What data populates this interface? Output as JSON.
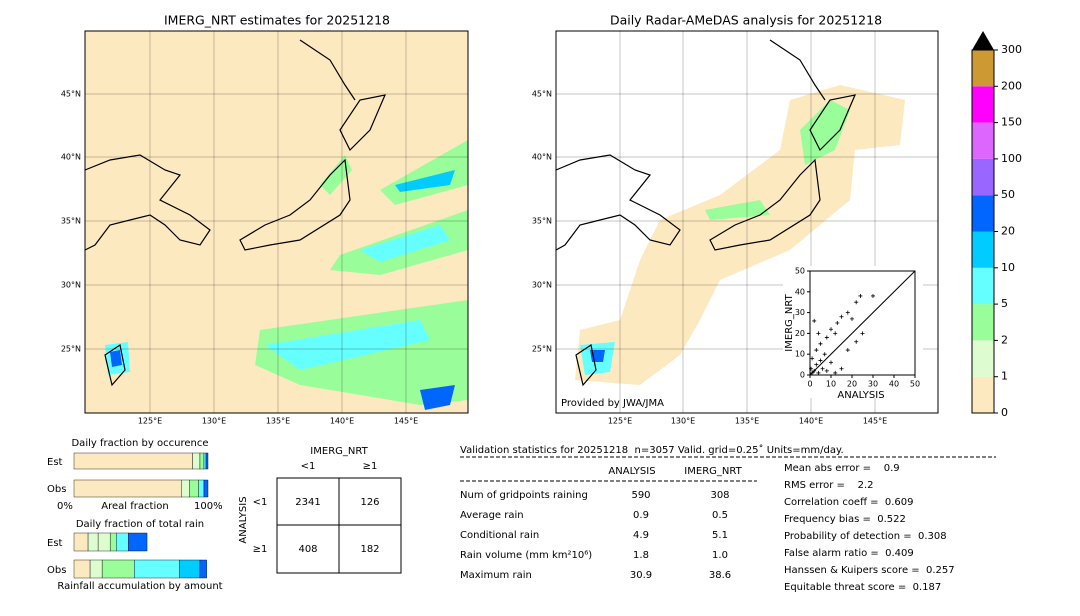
{
  "map1": {
    "title": "IMERG_NRT estimates for 20251218",
    "lat_labels": [
      "45°N",
      "40°N",
      "35°N",
      "30°N",
      "25°N"
    ],
    "lon_labels": [
      "125°E",
      "130°E",
      "135°E",
      "140°E",
      "145°E"
    ]
  },
  "map2": {
    "title": "Daily Radar-AMeDAS analysis for 20251218",
    "lat_labels": [
      "45°N",
      "40°N",
      "35°N",
      "30°N",
      "25°N"
    ],
    "lon_labels": [
      "125°E",
      "130°E",
      "135°E",
      "140°E",
      "145°E"
    ],
    "credit": "Provided by JWA/JMA"
  },
  "colorbar": {
    "ticks": [
      0,
      1,
      2,
      5,
      10,
      20,
      50,
      100,
      150,
      200,
      300
    ],
    "colors": [
      "#fde9c0",
      "#ddfdd0",
      "#99fd99",
      "#66ffff",
      "#00ccff",
      "#0066ff",
      "#9966ff",
      "#dd66ff",
      "#ff00ff",
      "#cc9933"
    ]
  },
  "scatter": {
    "type": "scatter",
    "xlabel": "ANALYSIS",
    "ylabel": "IMERG_NRT",
    "xlim": [
      0,
      50
    ],
    "ylim": [
      0,
      50
    ],
    "xticks": [
      0,
      10,
      20,
      30,
      40,
      50
    ],
    "yticks": [
      0,
      10,
      20,
      30,
      40,
      50
    ],
    "x": [
      24,
      22,
      30,
      18,
      15,
      13,
      10,
      8,
      5,
      3,
      20,
      12,
      7,
      2,
      4,
      25,
      18,
      22,
      1,
      3,
      6,
      10,
      15,
      2,
      1,
      4,
      8,
      12,
      0.5,
      5
    ],
    "y": [
      38,
      35,
      38,
      30,
      28,
      25,
      22,
      18,
      15,
      12,
      27,
      20,
      10,
      26,
      20,
      20,
      12,
      16,
      8,
      5,
      3,
      6,
      3,
      2,
      1,
      1,
      2,
      1,
      3,
      7
    ]
  },
  "occurrence": {
    "title": "Daily fraction by occurence",
    "rows": [
      "Est",
      "Obs"
    ],
    "axis_left": "0%",
    "axis_mid": "Areal fraction",
    "axis_right": "100%",
    "colors": [
      "#fde9c0",
      "#ddfdd0",
      "#99fd99",
      "#66ffff",
      "#0066ff"
    ],
    "est": [
      88.5,
      5.5,
      3,
      1.5,
      1.5
    ],
    "obs": [
      80,
      6,
      7,
      4,
      3
    ]
  },
  "total": {
    "title": "Daily fraction of total rain",
    "rows": [
      "Est",
      "Obs"
    ],
    "footer": "Rainfall accumulation by amount",
    "est_colors": [
      "#fde9c0",
      "#ddfdd0",
      "#ddfdd0",
      "#99fd99",
      "#66ffff",
      "#0066ff"
    ],
    "est": [
      10.5,
      7.5,
      9,
      4.5,
      9,
      14
    ],
    "obs_colors": [
      "#fde9c0",
      "#ddfdd0",
      "#99fd99",
      "#66ffff",
      "#00ccff",
      "#0066ff"
    ],
    "obs": [
      12,
      9,
      24,
      33.5,
      15.5,
      5
    ]
  },
  "contingency": {
    "col_title": "IMERG_NRT",
    "row_title": "ANALYSIS",
    "cols": [
      "<1",
      "≥1"
    ],
    "rows": [
      "<1",
      "≥1"
    ],
    "cells": [
      [
        "2341",
        "126"
      ],
      [
        "408",
        "182"
      ]
    ]
  },
  "stats": {
    "header": "Validation statistics for 20251218  n=3057 Valid. grid=0.25˚ Units=mm/day.",
    "columns": [
      "ANALYSIS",
      "IMERG_NRT"
    ],
    "rows": [
      [
        "Num of gridpoints raining",
        "590",
        "308"
      ],
      [
        "Average rain",
        "0.9",
        "0.5"
      ],
      [
        "Conditional rain",
        "4.9",
        "5.1"
      ],
      [
        "Rain volume (mm km²10⁶)",
        "1.8",
        "1.0"
      ],
      [
        "Maximum rain",
        "30.9",
        "38.6"
      ]
    ],
    "scores": [
      "Mean abs error =    0.9",
      "RMS error =    2.2",
      "Correlation coeff =  0.609",
      "Frequency bias =  0.522",
      "Probability of detection =  0.308",
      "False alarm ratio =  0.409",
      "Hanssen & Kuipers score =  0.257",
      "Equitable threat score =  0.187"
    ]
  }
}
